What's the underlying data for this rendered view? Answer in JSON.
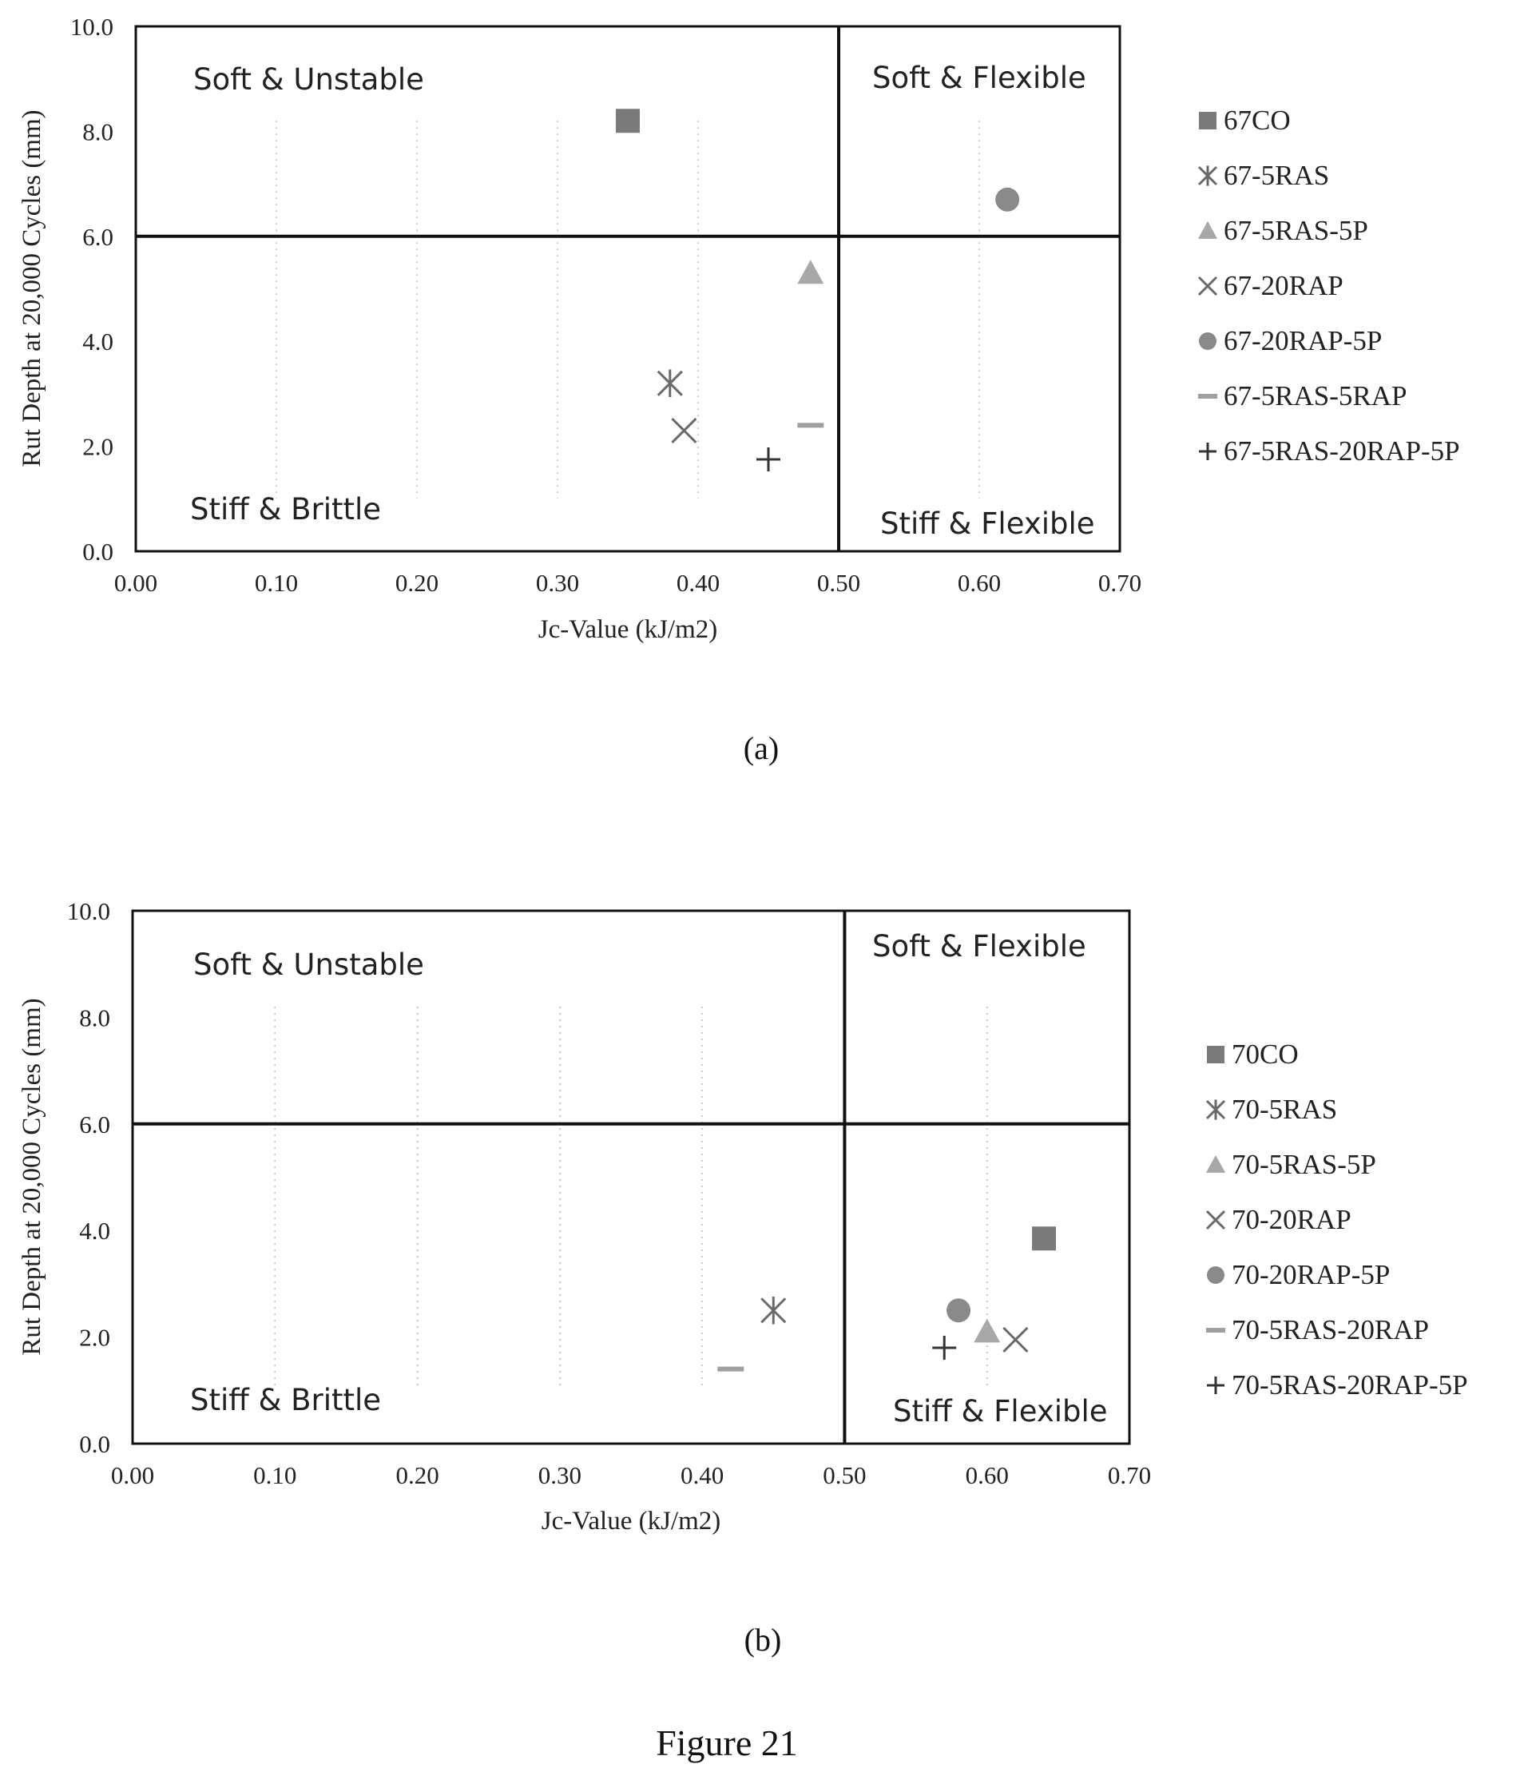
{
  "chart_data": [
    {
      "type": "scatter",
      "panel_label": "(a)",
      "xlabel": "Jc-Value  (kJ/m2)",
      "ylabel": "Rut Depth at 20,000  Cycles (mm)",
      "xlim": [
        0,
        0.7
      ],
      "ylim": [
        0,
        10
      ],
      "x_ticks": [
        "0.00",
        "0.10",
        "0.20",
        "0.30",
        "0.40",
        "0.50",
        "0.60",
        "0.70"
      ],
      "y_ticks": [
        "0.0",
        "2.0",
        "4.0",
        "6.0",
        "8.0",
        "10.0"
      ],
      "threshold_x": 0.5,
      "threshold_y": 6.0,
      "legend_placement": "right",
      "zones": {
        "top_left": "Soft & Unstable",
        "top_right": "Soft & Flexible",
        "bottom_left": "Stiff & Brittle",
        "bottom_right": "Stiff & Flexible"
      },
      "series": [
        {
          "name": "67CO",
          "marker": "square",
          "color": "#7a7a7a",
          "x": 0.35,
          "y": 8.2
        },
        {
          "name": "67-5RAS",
          "marker": "asterisk",
          "color": "#6a6a6a",
          "x": 0.38,
          "y": 3.2
        },
        {
          "name": "67-5RAS-5P",
          "marker": "triangle",
          "color": "#a8a8a8",
          "x": 0.48,
          "y": 5.3
        },
        {
          "name": "67-20RAP",
          "marker": "x",
          "color": "#6a6a6a",
          "x": 0.39,
          "y": 2.3
        },
        {
          "name": "67-20RAP-5P",
          "marker": "circle",
          "color": "#8a8a8a",
          "x": 0.62,
          "y": 6.7
        },
        {
          "name": "67-5RAS-5RAP",
          "marker": "dash",
          "color": "#a0a0a0",
          "x": 0.48,
          "y": 2.4
        },
        {
          "name": "67-5RAS-20RAP-5P",
          "marker": "plus",
          "color": "#333333",
          "x": 0.45,
          "y": 1.75
        }
      ]
    },
    {
      "type": "scatter",
      "panel_label": "(b)",
      "xlabel": "Jc-Value  (kJ/m2)",
      "ylabel": "Rut Depth at 20,000  Cycles (mm)",
      "xlim": [
        0,
        0.7
      ],
      "ylim": [
        0,
        10
      ],
      "x_ticks": [
        "0.00",
        "0.10",
        "0.20",
        "0.30",
        "0.40",
        "0.50",
        "0.60",
        "0.70"
      ],
      "y_ticks": [
        "0.0",
        "2.0",
        "4.0",
        "6.0",
        "8.0",
        "10.0"
      ],
      "threshold_x": 0.5,
      "threshold_y": 6.0,
      "legend_placement": "right",
      "zones": {
        "top_left": "Soft & Unstable",
        "top_right": "Soft & Flexible",
        "bottom_left": "Stiff & Brittle",
        "bottom_right": "Stiff & Flexible"
      },
      "series": [
        {
          "name": "70CO",
          "marker": "square",
          "color": "#7a7a7a",
          "x": 0.64,
          "y": 3.85
        },
        {
          "name": "70-5RAS",
          "marker": "asterisk",
          "color": "#6a6a6a",
          "x": 0.45,
          "y": 2.5
        },
        {
          "name": "70-5RAS-5P",
          "marker": "triangle",
          "color": "#a8a8a8",
          "x": 0.6,
          "y": 2.1
        },
        {
          "name": "70-20RAP",
          "marker": "x",
          "color": "#6a6a6a",
          "x": 0.62,
          "y": 1.95
        },
        {
          "name": "70-20RAP-5P",
          "marker": "circle",
          "color": "#8a8a8a",
          "x": 0.58,
          "y": 2.5
        },
        {
          "name": "70-5RAS-20RAP",
          "marker": "dash",
          "color": "#a0a0a0",
          "x": 0.42,
          "y": 1.4
        },
        {
          "name": "70-5RAS-20RAP-5P",
          "marker": "plus",
          "color": "#333333",
          "x": 0.57,
          "y": 1.8
        }
      ]
    }
  ],
  "figure_caption": "Figure 21"
}
